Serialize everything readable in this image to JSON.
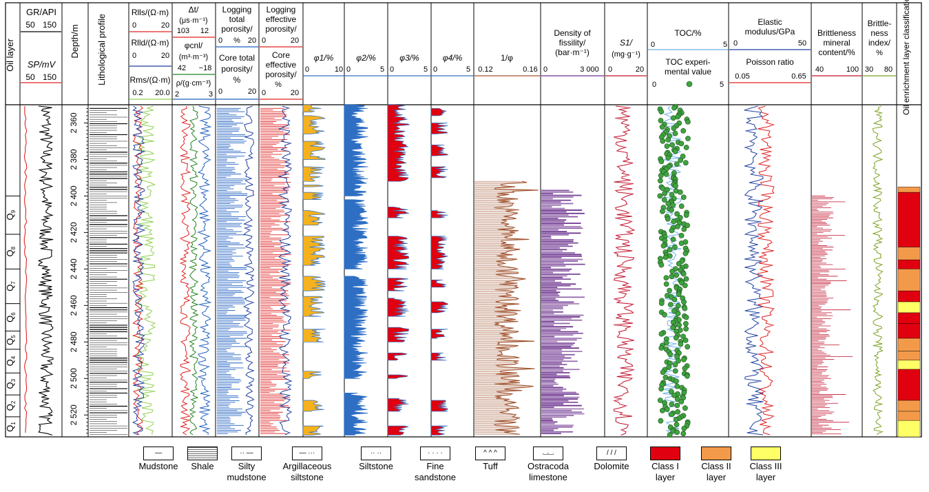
{
  "chart_data": {
    "type": "well-log-composite",
    "headers": {
      "oil_layer": "Oil layer",
      "gr": "GR/API",
      "gr_range": [
        "50",
        "150"
      ],
      "sp": "SP/mV",
      "sp_range": [
        "50",
        "150"
      ],
      "depth": "Depth/m",
      "litho": "Lithological profile",
      "rllS": "Rlls/(Ω·m)",
      "rllS_range": [
        "0",
        "20"
      ],
      "rllD": "Rlld/(Ω·m)",
      "rllD_range": [
        "0",
        "20"
      ],
      "rms": "Rms/(Ω·m)",
      "rms_range": [
        "0.2",
        "20.0"
      ],
      "dt_1": "Δt/",
      "dt_2": "(μs·m⁻¹)",
      "dt_range": [
        "103",
        "12"
      ],
      "cnl_1": "φcnl/",
      "cnl_2": "(m³·m⁻³)",
      "cnl_range": [
        "42",
        "−18"
      ],
      "rho": "ρ/(g·cm⁻³)",
      "rho_range": [
        "2",
        "3"
      ],
      "ltp_1": "Logging",
      "ltp_2": "total",
      "ltp_3": "porosity/",
      "ltp_range": [
        "0",
        "%",
        "20"
      ],
      "ctp_1": "Core total",
      "ctp_2": "porosity/",
      "ctp_3": "%",
      "ctp_range": [
        "0",
        "20"
      ],
      "lep_1": "Logging",
      "lep_2": "effective",
      "lep_3": "porosity/",
      "lep_range": [
        "0",
        "20"
      ],
      "cep_1": "Core",
      "cep_2": "effective",
      "cep_3": "porosity/",
      "cep_4": "%",
      "cep_range": [
        "0",
        "20"
      ],
      "phi1": "φ1/%",
      "phi1_range": [
        "0",
        "10"
      ],
      "phi2": "φ2/%",
      "phi2_range": [
        "0",
        "5"
      ],
      "phi3": "φ3/%",
      "phi3_range": [
        "0",
        "5"
      ],
      "phi4": "φ4/%",
      "phi4_range": [
        "0",
        "5"
      ],
      "inv": "1/φ",
      "inv_range": [
        "0.12",
        "0.16"
      ],
      "fis_1": "Density of",
      "fis_2": "fissility/",
      "fis_3": "(bar·m⁻¹)",
      "fis_range": [
        "0",
        "3 000"
      ],
      "s1_1": "S1/",
      "s1_2": "(mg·g⁻¹)",
      "s1_range": [
        "0",
        "20"
      ],
      "toc": "TOC/%",
      "toc_range": [
        "0",
        "5"
      ],
      "tocexp_1": "TOC experi-",
      "tocexp_2": "mental value",
      "tocexp_range": [
        "0",
        "5"
      ],
      "em_1": "Elastic",
      "em_2": "modulus/GPa",
      "em_range": [
        "0",
        "50"
      ],
      "pr": "Poisson ratio",
      "pr_range": [
        "0.05",
        "0.65"
      ],
      "bm_1": "Brittleness",
      "bm_2": "mineral",
      "bm_3": "content/%",
      "bm_range": [
        "40",
        "100"
      ],
      "bi_1": "Brittle-",
      "bi_2": "ness",
      "bi_3": "index/",
      "bi_4": "%",
      "bi_range": [
        "30",
        "80"
      ],
      "oec": "Oil enrichment layer classification"
    },
    "depth_ticks": [
      "2 360",
      "2 380",
      "2 400",
      "2 420",
      "2 440",
      "2 460",
      "2 480",
      "2 500",
      "2 520"
    ],
    "depth_range": [
      2350,
      2532
    ],
    "oil_layers": [
      {
        "name": "Q9",
        "top": 2400,
        "bottom": 2421
      },
      {
        "name": "Q8",
        "top": 2421,
        "bottom": 2440
      },
      {
        "name": "Q7",
        "top": 2440,
        "bottom": 2459
      },
      {
        "name": "Q6",
        "top": 2459,
        "bottom": 2474
      },
      {
        "name": "Q5",
        "top": 2474,
        "bottom": 2484
      },
      {
        "name": "Q4",
        "top": 2484,
        "bottom": 2497
      },
      {
        "name": "Q3",
        "top": 2497,
        "bottom": 2509
      },
      {
        "name": "Q2",
        "top": 2509,
        "bottom": 2521
      },
      {
        "name": "Q1",
        "top": 2521,
        "bottom": 2532
      }
    ],
    "classification": [
      {
        "top": 2395,
        "bottom": 2398,
        "class": "II"
      },
      {
        "top": 2398,
        "bottom": 2428,
        "class": "I"
      },
      {
        "top": 2428,
        "bottom": 2435,
        "class": "II"
      },
      {
        "top": 2435,
        "bottom": 2440,
        "class": "I"
      },
      {
        "top": 2440,
        "bottom": 2452,
        "class": "II"
      },
      {
        "top": 2452,
        "bottom": 2458,
        "class": "I"
      },
      {
        "top": 2458,
        "bottom": 2464,
        "class": "III"
      },
      {
        "top": 2464,
        "bottom": 2470,
        "class": "I"
      },
      {
        "top": 2470,
        "bottom": 2478,
        "class": "I"
      },
      {
        "top": 2478,
        "bottom": 2485,
        "class": "II"
      },
      {
        "top": 2485,
        "bottom": 2490,
        "class": "II"
      },
      {
        "top": 2490,
        "bottom": 2495,
        "class": "III"
      },
      {
        "top": 2495,
        "bottom": 2512,
        "class": "I"
      },
      {
        "top": 2512,
        "bottom": 2518,
        "class": "II"
      },
      {
        "top": 2518,
        "bottom": 2523,
        "class": "II"
      },
      {
        "top": 2523,
        "bottom": 2532,
        "class": "III"
      }
    ],
    "legend": [
      {
        "label_1": "Mudstone",
        "label_2": "",
        "pattern": "mudstone"
      },
      {
        "label_1": "Shale",
        "label_2": "",
        "pattern": "shale"
      },
      {
        "label_1": "Silty",
        "label_2": "mudstone",
        "pattern": "silty_mudstone"
      },
      {
        "label_1": "Argillaceous",
        "label_2": "siltstone",
        "pattern": "argillaceous_siltstone"
      },
      {
        "label_1": "Siltstone",
        "label_2": "",
        "pattern": "siltstone"
      },
      {
        "label_1": "Fine",
        "label_2": "sandstone",
        "pattern": "fine_sandstone"
      },
      {
        "label_1": "Tuff",
        "label_2": "",
        "pattern": "tuff"
      },
      {
        "label_1": "Ostracoda",
        "label_2": "limestone",
        "pattern": "ostracoda_limestone"
      },
      {
        "label_1": "Dolomite",
        "label_2": "",
        "pattern": "dolomite"
      },
      {
        "label_1": "Class I",
        "label_2": "layer",
        "pattern": "class1"
      },
      {
        "label_1": "Class II",
        "label_2": "layer",
        "pattern": "class2"
      },
      {
        "label_1": "Class III",
        "label_2": "layer",
        "pattern": "class3"
      }
    ],
    "colors": {
      "class_I": "#e0000f",
      "class_II": "#f39a4a",
      "class_III": "#ffff66",
      "gr": "#000000",
      "sp": "#e02020",
      "rlls": "#e02020",
      "rlld": "#1f3fa0",
      "rms": "#8fd14f",
      "dt": "#e02020",
      "cnl": "#208020",
      "rho": "#1f5fc0",
      "porosity": "#1f5fc0",
      "eff_porosity": "#e02020",
      "phi1": "#f5b21e",
      "phi2": "#2e6fc4",
      "phi3": "#e0000f",
      "phi4": "#e0000f",
      "inv": "#a0522d",
      "fissility": "#6a2f8c",
      "s1": "#c0102a",
      "toc": "#6ab0e8",
      "toc_exp": "#3fa33f",
      "em": "#1f3fa0",
      "pr": "#e02020",
      "bm": "#c0102a",
      "bi": "#7aa020"
    }
  }
}
